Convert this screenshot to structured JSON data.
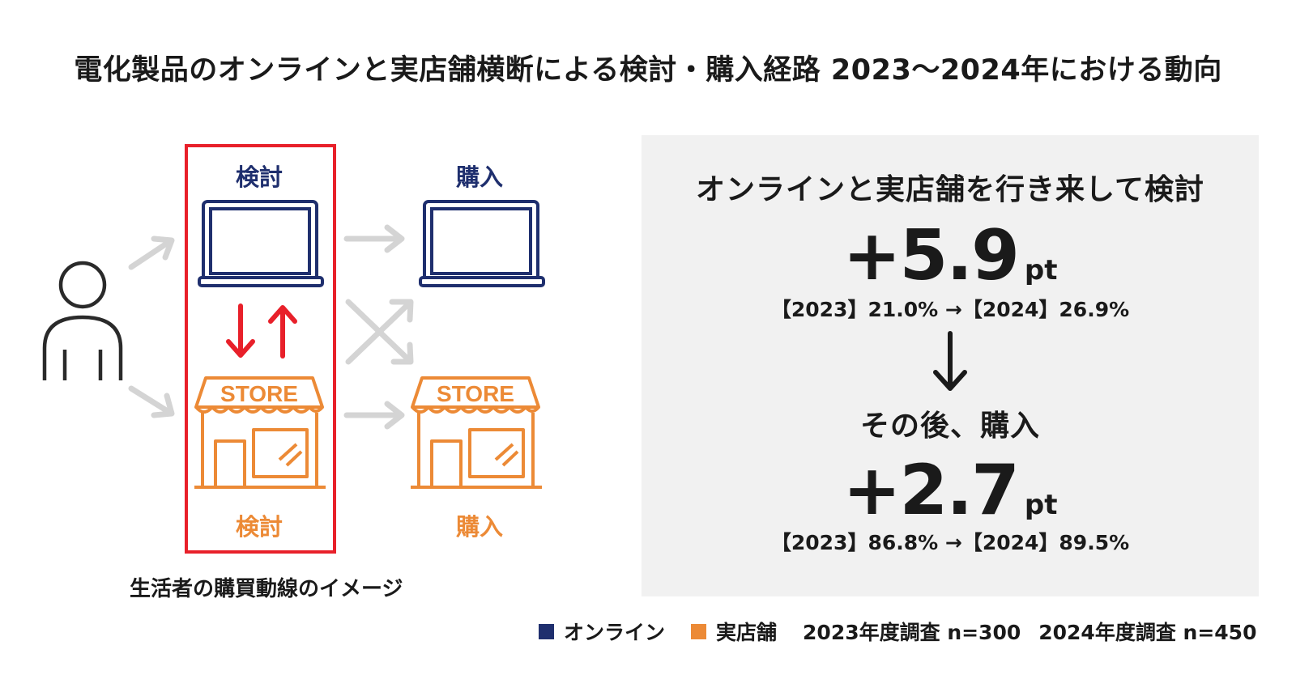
{
  "title": "電化製品のオンラインと実店舗横断による検討・購入経路 2023〜2024年における動向",
  "diagram": {
    "consider_online_label": "検討",
    "purchase_online_label": "購入",
    "consider_store_label": "検討",
    "purchase_store_label": "購入",
    "store_sign": "STORE",
    "caption": "生活者の購買動線のイメージ"
  },
  "panel": {
    "heading1": "オンラインと実店舗を行き来して検討",
    "stat1_value": "+5.9",
    "stat1_unit": "pt",
    "stat1_detail": "【2023】21.0% →【2024】26.9%",
    "heading2": "その後、購入",
    "stat2_value": "+2.7",
    "stat2_unit": "pt",
    "stat2_detail": "【2023】86.8% →【2024】89.5%"
  },
  "legend": {
    "online_label": "オンライン",
    "store_label": "実店舗",
    "survey_2023": "2023年度調査 n=300",
    "survey_2024": "2024年度調査 n=450"
  },
  "colors": {
    "online": "#1f2f6e",
    "store": "#ec8a36",
    "highlight": "#e8202a",
    "flow_arrow": "#d4d4d4"
  }
}
